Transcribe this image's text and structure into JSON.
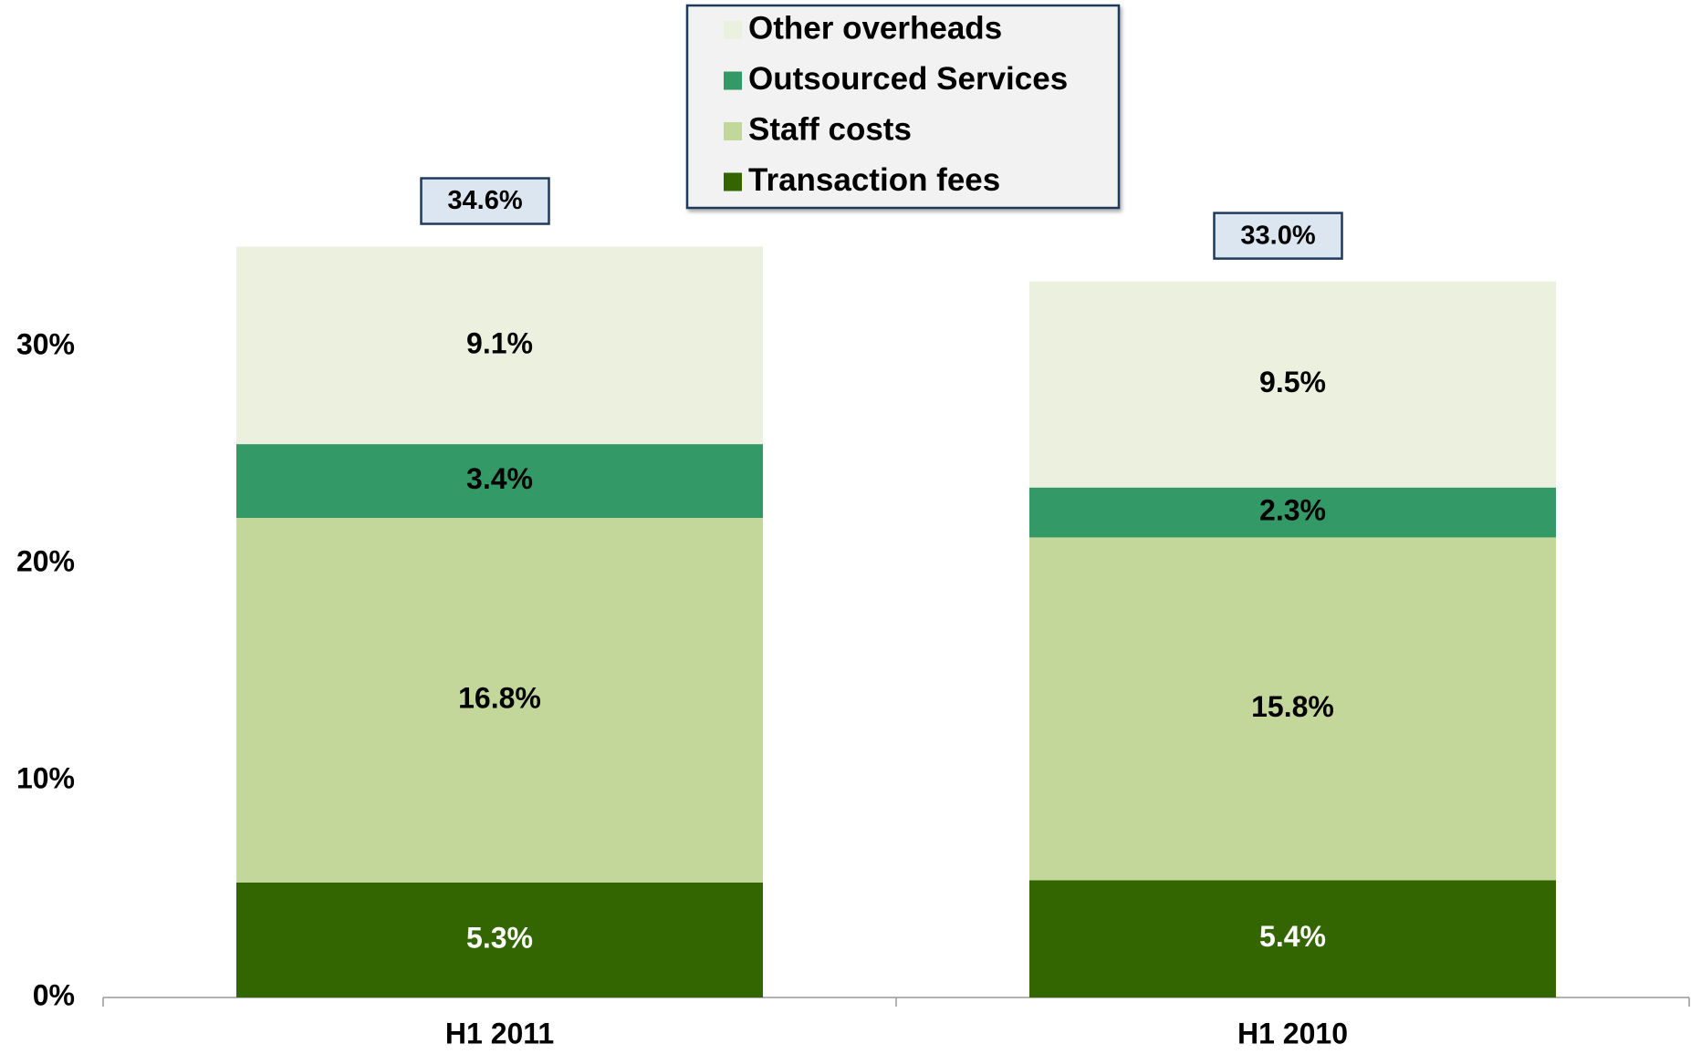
{
  "chart_data": {
    "type": "stacked_bar",
    "categories": [
      "H1 2011",
      "H1 2010"
    ],
    "series": [
      {
        "name": "Transaction fees",
        "color": "#336600",
        "values": [
          5.3,
          5.4
        ],
        "value_labels": [
          "5.3%",
          "5.4%"
        ]
      },
      {
        "name": "Staff costs",
        "color": "#c4d79b",
        "values": [
          16.8,
          15.8
        ],
        "value_labels": [
          "16.8%",
          "15.8%"
        ]
      },
      {
        "name": "Outsourced Services",
        "color": "#339966",
        "values": [
          3.4,
          2.3
        ],
        "value_labels": [
          "3.4%",
          "2.3%"
        ]
      },
      {
        "name": "Other overheads",
        "color": "#ebf1de",
        "values": [
          9.1,
          9.5
        ],
        "value_labels": [
          "9.1%",
          "9.5%"
        ]
      }
    ],
    "totals": [
      34.6,
      33.0
    ],
    "totals_labels": [
      "34.6%",
      "33.0%"
    ],
    "ylim": [
      0,
      45
    ],
    "yticks": [
      {
        "value": 0,
        "label": "0%"
      },
      {
        "value": 10,
        "label": "10%"
      },
      {
        "value": 20,
        "label": "20%"
      },
      {
        "value": 30,
        "label": "30%"
      }
    ],
    "grid": true
  }
}
